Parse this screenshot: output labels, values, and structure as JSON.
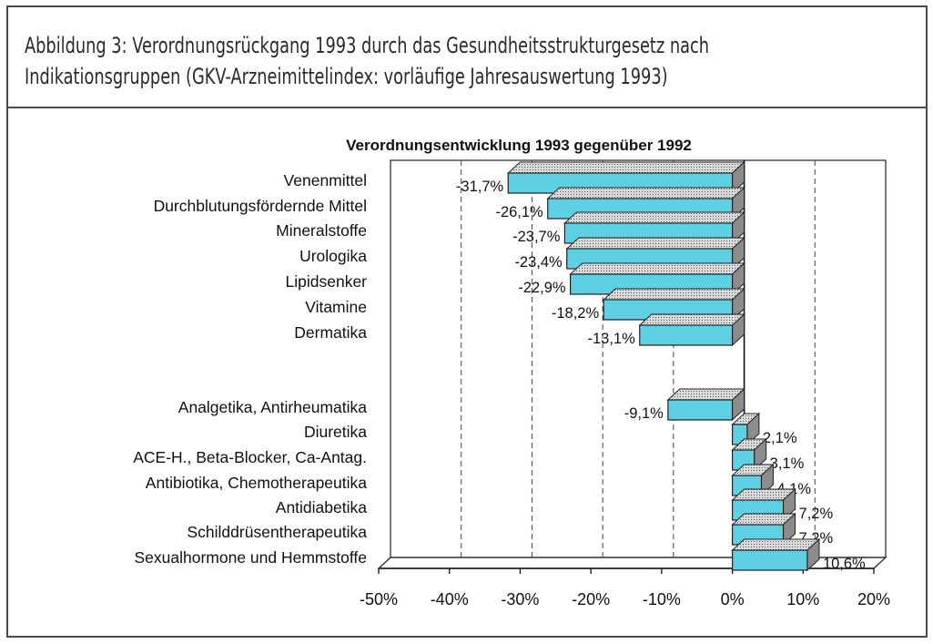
{
  "caption": {
    "line1": "Abbildung 3: Verordnungsrückgang 1993 durch das Gesundheitsstrukturgesetz nach",
    "line2": "Indikationsgruppen (GKV-Arzneimittelindex: vorläufige Jahresauswertung 1993)"
  },
  "chart_data": {
    "type": "bar",
    "orientation": "horizontal",
    "title": "Verordnungsentwicklung 1993 gegenüber 1992",
    "xlim": [
      -50,
      20
    ],
    "xticks": [
      "-50%",
      "-40%",
      "-30%",
      "-20%",
      "-10%",
      "0%",
      "10%",
      "20%"
    ],
    "grid": "vertical dashed",
    "groups": [
      {
        "categories": [
          "Venenmittel",
          "Durchblutungsfördernde Mittel",
          "Mineralstoffe",
          "Urologika",
          "Lipidsenker",
          "Vitamine",
          "Dermatika"
        ],
        "values": [
          -31.7,
          -26.1,
          -23.7,
          -23.4,
          -22.9,
          -18.2,
          -13.1
        ],
        "labels": [
          "-31,7%",
          "-26,1%",
          "-23,7%",
          "-23,4%",
          "-22,9%",
          "-18,2%",
          "-13,1%"
        ]
      },
      {
        "categories": [
          "Analgetika, Antirheumatika",
          "Diuretika",
          "ACE-H., Beta-Blocker, Ca-Antag.",
          "Antibiotika, Chemotherapeutika",
          "Antidiabetika",
          "Schilddrüsentherapeutika",
          "Sexualhormone und Hemmstoffe"
        ],
        "values": [
          -9.1,
          2.1,
          3.1,
          4.1,
          7.2,
          7.2,
          10.6
        ],
        "labels": [
          "-9,1%",
          "2,1%",
          "3,1%",
          "4,1%",
          "7,2%",
          "7,2%",
          "10,6%"
        ]
      }
    ],
    "colors": {
      "bar": "#5ed0e4",
      "top": "#cfcfcf",
      "side": "#8c8c8c",
      "grid": "#444444"
    }
  }
}
